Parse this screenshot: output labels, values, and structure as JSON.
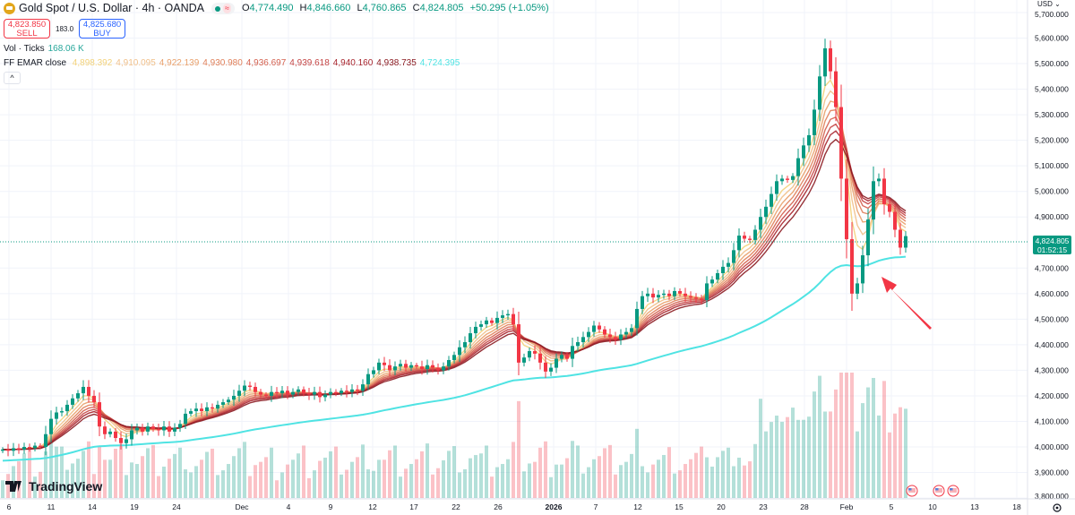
{
  "header": {
    "title": "Gold Spot / U.S. Dollar · 4h · OANDA",
    "ohlc": {
      "o_label": "O",
      "o": "4,774.490",
      "h_label": "H",
      "h": "4,846.660",
      "l_label": "L",
      "l": "4,760.865",
      "c_label": "C",
      "c": "4,824.805",
      "change": "+50.295 (+1.05%)"
    },
    "eq_icon": "≈"
  },
  "trade": {
    "sell_price": "4,823.850",
    "sell_label": "SELL",
    "spread": "183.0",
    "buy_price": "4,825.680",
    "buy_label": "BUY"
  },
  "indicators": {
    "vol_label": "Vol · Ticks",
    "vol_value": "168.06 K",
    "ema_label": "FF EMAR close",
    "ema_values": [
      "4,898.392",
      "4,910.095",
      "4,922.139",
      "4,930.980",
      "4,936.697",
      "4,939.618",
      "4,940.160",
      "4,938.735",
      "4,724.395"
    ],
    "ema_colors": [
      "#f3d27a",
      "#f1c08a",
      "#e9a06a",
      "#e0805a",
      "#d4614f",
      "#c54544",
      "#a8252d",
      "#8c1c22",
      "#4fe3e3"
    ]
  },
  "collapse_icon": "^",
  "price_axis": {
    "currency": "USD",
    "current_price": "4,824.805",
    "countdown": "01:52:15",
    "ticks": [
      "5,700.000",
      "5,600.000",
      "5,500.000",
      "5,400.000",
      "5,300.000",
      "5,200.000",
      "5,100.000",
      "5,000.000",
      "4,900.000",
      "4,700.000",
      "4,600.000",
      "4,500.000",
      "4,400.000",
      "4,300.000",
      "4,200.000",
      "4,100.000",
      "4,000.000",
      "3,900.000",
      "3,800.000"
    ]
  },
  "time_axis": {
    "ticks": [
      "6",
      "11",
      "14",
      "19",
      "24",
      "Dec",
      "4",
      "9",
      "12",
      "17",
      "22",
      "26",
      "2026",
      "7",
      "12",
      "15",
      "20",
      "23",
      "28",
      "Feb",
      "5",
      "10",
      "13",
      "18"
    ]
  },
  "logo": "TradingView",
  "colors": {
    "up": "#089981",
    "down": "#f23645",
    "arrow": "#f23645",
    "ema_long": "#4fe3e3"
  },
  "chart_data": {
    "type": "candlestick",
    "ylim": [
      3800,
      5700
    ],
    "closes": [
      3990,
      3985,
      3995,
      3990,
      4000,
      3995,
      4005,
      4000,
      4050,
      4110,
      4135,
      4140,
      4165,
      4190,
      4210,
      4235,
      4200,
      4175,
      4080,
      4050,
      4060,
      4035,
      4015,
      4030,
      4065,
      4075,
      4060,
      4080,
      4070,
      4065,
      4080,
      4060,
      4075,
      4090,
      4130,
      4140,
      4150,
      4140,
      4155,
      4150,
      4165,
      4175,
      4185,
      4200,
      4220,
      4240,
      4235,
      4215,
      4205,
      4200,
      4215,
      4210,
      4220,
      4205,
      4215,
      4225,
      4210,
      4205,
      4215,
      4195,
      4205,
      4215,
      4210,
      4220,
      4215,
      4225,
      4220,
      4245,
      4285,
      4300,
      4330,
      4320,
      4300,
      4315,
      4325,
      4310,
      4320,
      4315,
      4305,
      4320,
      4310,
      4300,
      4315,
      4340,
      4360,
      4390,
      4410,
      4445,
      4470,
      4480,
      4495,
      4485,
      4505,
      4515,
      4520,
      4480,
      4330,
      4350,
      4375,
      4365,
      4330,
      4295,
      4310,
      4345,
      4360,
      4345,
      4395,
      4410,
      4430,
      4450,
      4475,
      4460,
      4440,
      4430,
      4420,
      4440,
      4450,
      4465,
      4540,
      4590,
      4600,
      4585,
      4595,
      4600,
      4590,
      4610,
      4600,
      4590,
      4585,
      4580,
      4575,
      4640,
      4655,
      4680,
      4705,
      4720,
      4770,
      4827,
      4815,
      4810,
      4850,
      4900,
      4940,
      4990,
      5040,
      5050,
      5045,
      5060,
      5130,
      5180,
      5220,
      5320,
      5450,
      5560,
      5470,
      5330,
      5050,
      4813,
      4600,
      4640,
      4750,
      4890,
      5040,
      5050,
      4950,
      4920,
      4850,
      4780,
      4825
    ],
    "first_open": 3985
  }
}
